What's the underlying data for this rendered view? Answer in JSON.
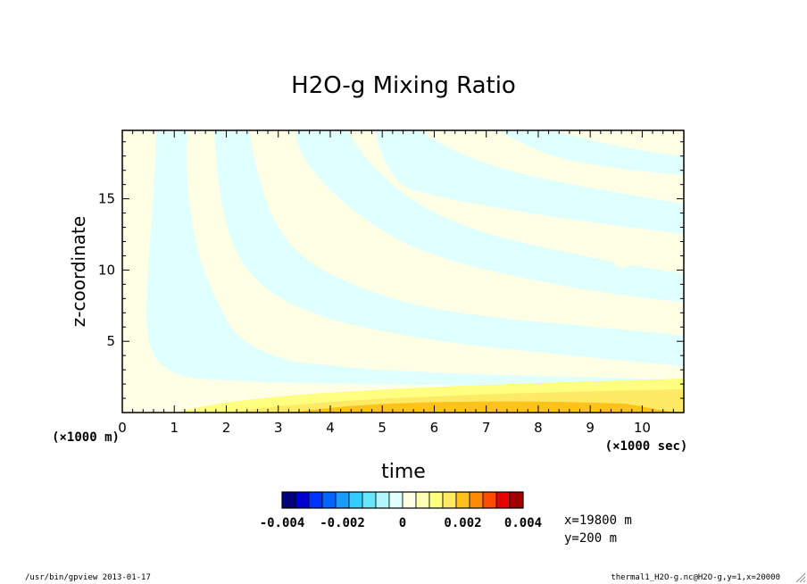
{
  "chart_data": {
    "type": "heatmap",
    "title": "H2O-g Mixing Ratio",
    "xlabel": "time",
    "ylabel": "z-coordinate",
    "x_unit_note": "(×1000 sec)",
    "y_unit_note": "(×1000 m)",
    "xlim": [
      0,
      10.8
    ],
    "ylim": [
      0,
      19.8
    ],
    "x_ticks": [
      "0",
      "1",
      "2",
      "3",
      "4",
      "5",
      "6",
      "7",
      "8",
      "9",
      "10"
    ],
    "y_ticks": [
      "5",
      "10",
      "15"
    ],
    "colorbar": {
      "colors": [
        "#00007f",
        "#0000cc",
        "#0033ff",
        "#0066ff",
        "#1a9cff",
        "#33ccff",
        "#66e6ff",
        "#b3f5ff",
        "#e0ffff",
        "#ffffe6",
        "#ffffb3",
        "#ffff80",
        "#ffea66",
        "#ffc21a",
        "#ff8c00",
        "#ff4d00",
        "#e60000",
        "#a00000"
      ],
      "tick_labels": [
        "-0.004",
        "-0.002",
        "0",
        "0.002",
        "0.004"
      ]
    },
    "annotations": [
      "x=19800 m",
      "y=200 m"
    ],
    "regions": [
      {
        "level": "slightly_negative",
        "color": "#e0ffff",
        "description": "cyan bands"
      },
      {
        "level": "slightly_positive",
        "color": "#ffffe6",
        "description": "pale yellow bands"
      },
      {
        "level": "positive_0.001",
        "color": "#ffff80",
        "description": "near surface band"
      },
      {
        "level": "positive_0.002",
        "color": "#ffc21a",
        "description": "surface max t~6-8"
      }
    ]
  },
  "footer": {
    "left": "/usr/bin/gpview  2013-01-17",
    "right": "thermal1_H2O-g.nc@H2O-g,y=1,x=20000"
  }
}
